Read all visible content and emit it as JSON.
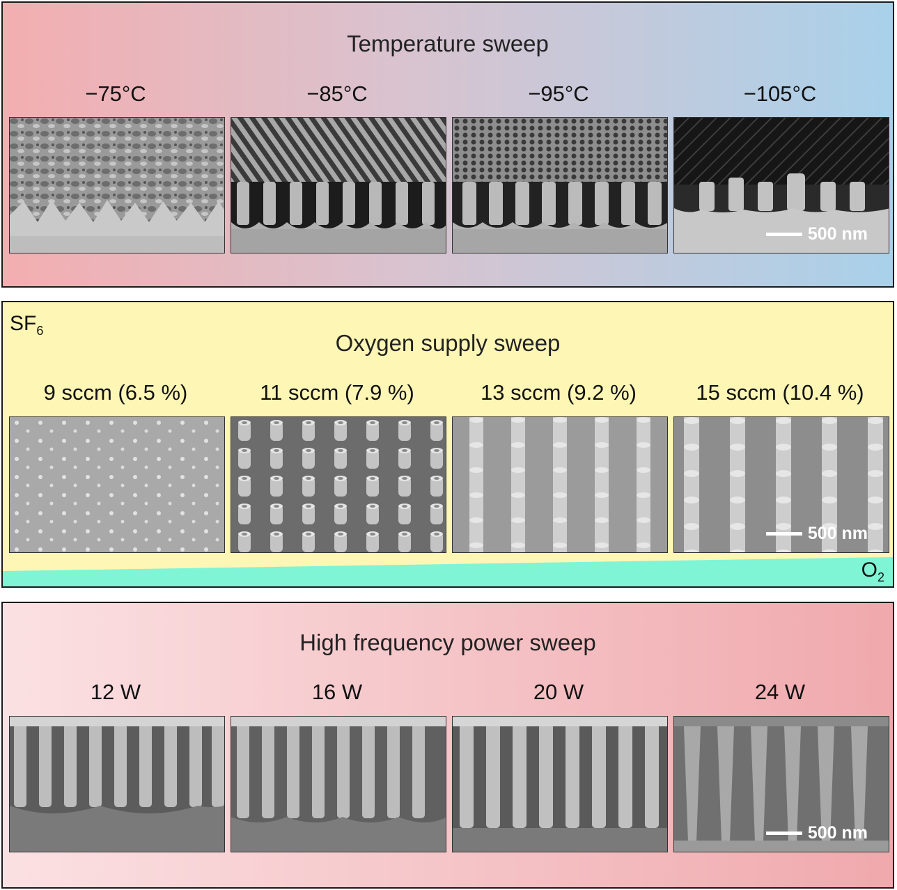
{
  "temperature": {
    "title": "Temperature sweep",
    "labels": [
      "−75°C",
      "−85°C",
      "−95°C",
      "−105°C"
    ],
    "scale_bar": "500 nm"
  },
  "oxygen": {
    "title": "Oxygen supply sweep",
    "gas_top": {
      "base": "SF",
      "sub": "6"
    },
    "gas_bottom": {
      "base": "O",
      "sub": "2"
    },
    "labels": [
      "9 sccm (6.5 %)",
      "11 sccm (7.9 %)",
      "13 sccm (9.2 %)",
      "15 sccm (10.4 %)"
    ],
    "scale_bar": "500 nm",
    "colors": {
      "background": "#fdf6b5",
      "o2_gradient": "#7ff5d6"
    }
  },
  "power": {
    "title": "High frequency power sweep",
    "labels": [
      "12 W",
      "16 W",
      "20 W",
      "24 W"
    ],
    "scale_bar": "500 nm"
  }
}
